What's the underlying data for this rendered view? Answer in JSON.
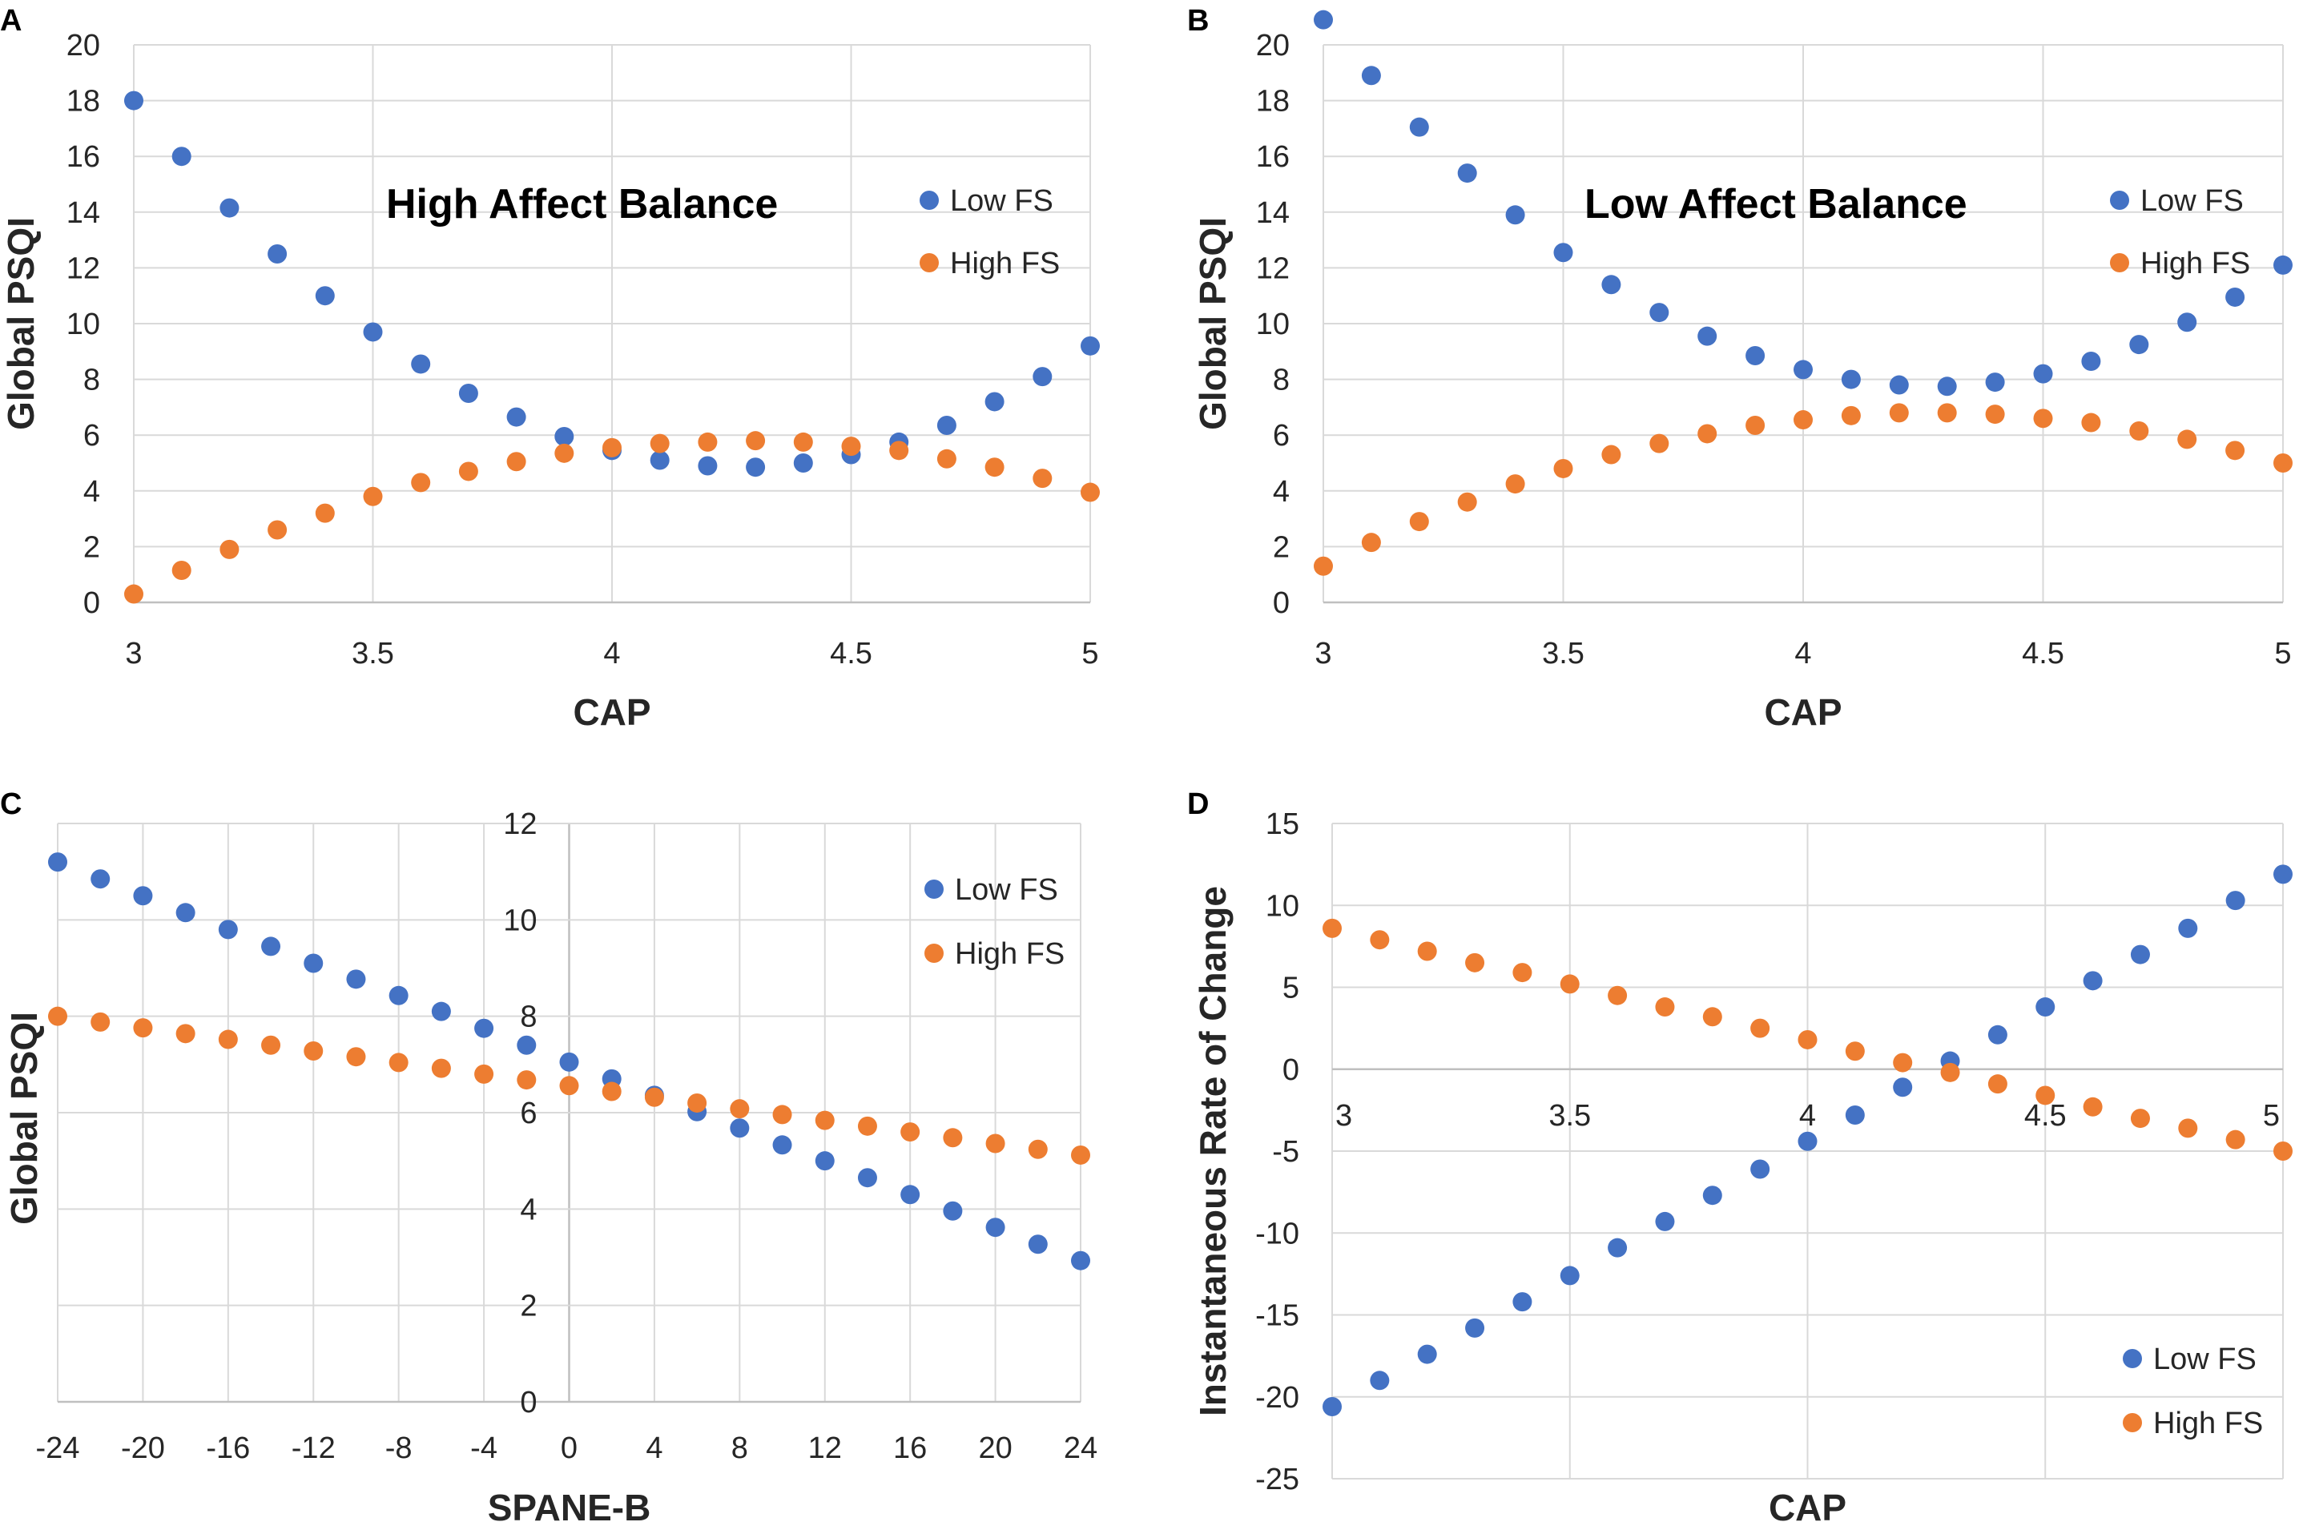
{
  "colors": {
    "low_fs": "#4472C4",
    "high_fs": "#ED7D31",
    "grid": "#d9d9d9",
    "text": "#262626"
  },
  "chart_data": [
    {
      "panel": "A",
      "type": "scatter",
      "title": "High Affect Balance",
      "xlabel": "CAP",
      "ylabel": "Global PSQI",
      "xlim": [
        3,
        5
      ],
      "ylim": [
        0,
        20
      ],
      "xticks": [
        3,
        3.5,
        4,
        4.5,
        5
      ],
      "xtick_labels": [
        "3",
        "3.5",
        "4",
        "4.5",
        "5"
      ],
      "yticks": [
        0,
        2,
        4,
        6,
        8,
        10,
        12,
        14,
        16,
        18,
        20
      ],
      "ytick_labels": [
        "0",
        "2",
        "4",
        "6",
        "8",
        "10",
        "12",
        "14",
        "16",
        "18",
        "20"
      ],
      "x_axis_at": 0,
      "legend_position": "top-right",
      "series": [
        {
          "name": "Low FS",
          "color": "#4472C4",
          "x": [
            3.0,
            3.1,
            3.2,
            3.3,
            3.4,
            3.5,
            3.6,
            3.7,
            3.8,
            3.9,
            4.0,
            4.1,
            4.2,
            4.3,
            4.4,
            4.5,
            4.6,
            4.7,
            4.8,
            4.9,
            5.0
          ],
          "y": [
            18.0,
            16.0,
            14.15,
            12.5,
            11.0,
            9.7,
            8.55,
            7.5,
            6.65,
            5.95,
            5.45,
            5.1,
            4.9,
            4.85,
            5.0,
            5.3,
            5.75,
            6.35,
            7.2,
            8.1,
            9.2
          ]
        },
        {
          "name": "High FS",
          "color": "#ED7D31",
          "x": [
            3.0,
            3.1,
            3.2,
            3.3,
            3.4,
            3.5,
            3.6,
            3.7,
            3.8,
            3.9,
            4.0,
            4.1,
            4.2,
            4.3,
            4.4,
            4.5,
            4.6,
            4.7,
            4.8,
            4.9,
            5.0
          ],
          "y": [
            0.3,
            1.15,
            1.9,
            2.6,
            3.2,
            3.8,
            4.3,
            4.7,
            5.05,
            5.35,
            5.55,
            5.7,
            5.75,
            5.8,
            5.75,
            5.6,
            5.45,
            5.15,
            4.85,
            4.45,
            3.95
          ]
        }
      ]
    },
    {
      "panel": "B",
      "type": "scatter",
      "title": "Low Affect Balance",
      "xlabel": "CAP",
      "ylabel": "Global PSQI",
      "xlim": [
        3,
        5
      ],
      "ylim": [
        0,
        20
      ],
      "xticks": [
        3,
        3.5,
        4,
        4.5,
        5
      ],
      "xtick_labels": [
        "3",
        "3.5",
        "4",
        "4.5",
        "5"
      ],
      "yticks": [
        0,
        2,
        4,
        6,
        8,
        10,
        12,
        14,
        16,
        18,
        20
      ],
      "ytick_labels": [
        "0",
        "2",
        "4",
        "6",
        "8",
        "10",
        "12",
        "14",
        "16",
        "18",
        "20"
      ],
      "x_axis_at": 0,
      "legend_position": "top-right",
      "series": [
        {
          "name": "Low FS",
          "color": "#4472C4",
          "x": [
            3.0,
            3.1,
            3.2,
            3.3,
            3.4,
            3.5,
            3.6,
            3.7,
            3.8,
            3.9,
            4.0,
            4.1,
            4.2,
            4.3,
            4.4,
            4.5,
            4.6,
            4.7,
            4.8,
            4.9,
            5.0
          ],
          "y": [
            20.9,
            18.9,
            17.05,
            15.4,
            13.9,
            12.55,
            11.4,
            10.4,
            9.55,
            8.85,
            8.35,
            8.0,
            7.8,
            7.75,
            7.9,
            8.2,
            8.65,
            9.25,
            10.05,
            10.95,
            12.1
          ]
        },
        {
          "name": "High FS",
          "color": "#ED7D31",
          "x": [
            3.0,
            3.1,
            3.2,
            3.3,
            3.4,
            3.5,
            3.6,
            3.7,
            3.8,
            3.9,
            4.0,
            4.1,
            4.2,
            4.3,
            4.4,
            4.5,
            4.6,
            4.7,
            4.8,
            4.9,
            5.0
          ],
          "y": [
            1.3,
            2.15,
            2.9,
            3.6,
            4.25,
            4.8,
            5.3,
            5.7,
            6.05,
            6.35,
            6.55,
            6.7,
            6.8,
            6.8,
            6.75,
            6.6,
            6.45,
            6.15,
            5.85,
            5.45,
            5.0
          ]
        }
      ]
    },
    {
      "panel": "C",
      "type": "scatter",
      "title": "",
      "xlabel": "SPANE-B",
      "ylabel": "Global PSQI",
      "xlim": [
        -24,
        24
      ],
      "ylim": [
        0,
        12
      ],
      "xticks": [
        -24,
        -20,
        -16,
        -12,
        -8,
        -4,
        0,
        4,
        8,
        12,
        16,
        20,
        24
      ],
      "xtick_labels": [
        "-24",
        "-20",
        "-16",
        "-12",
        "-8",
        "-4",
        "0",
        "4",
        "8",
        "12",
        "16",
        "20",
        "24"
      ],
      "yticks": [
        0,
        2,
        4,
        6,
        8,
        10,
        12
      ],
      "ytick_labels": [
        "0",
        "2",
        "4",
        "6",
        "8",
        "10",
        "12"
      ],
      "x_axis_at": 0,
      "y_axis_at": 0,
      "legend_position": "top-right",
      "series": [
        {
          "name": "Low FS",
          "color": "#4472C4",
          "x": [
            -24,
            -22,
            -20,
            -18,
            -16,
            -14,
            -12,
            -10,
            -8,
            -6,
            -4,
            -2,
            0,
            2,
            4,
            6,
            8,
            10,
            12,
            14,
            16,
            18,
            20,
            22,
            24
          ],
          "y": [
            11.2,
            10.85,
            10.5,
            10.15,
            9.8,
            9.45,
            9.1,
            8.77,
            8.43,
            8.1,
            7.75,
            7.4,
            7.05,
            6.7,
            6.36,
            6.02,
            5.68,
            5.33,
            5.0,
            4.65,
            4.3,
            3.96,
            3.62,
            3.27,
            2.93
          ]
        },
        {
          "name": "High FS",
          "color": "#ED7D31",
          "x": [
            -24,
            -22,
            -20,
            -18,
            -16,
            -14,
            -12,
            -10,
            -8,
            -6,
            -4,
            -2,
            0,
            2,
            4,
            6,
            8,
            10,
            12,
            14,
            16,
            18,
            20,
            22,
            24
          ],
          "y": [
            8.0,
            7.88,
            7.76,
            7.64,
            7.52,
            7.4,
            7.28,
            7.16,
            7.04,
            6.92,
            6.8,
            6.68,
            6.56,
            6.44,
            6.32,
            6.2,
            6.08,
            5.96,
            5.84,
            5.72,
            5.6,
            5.48,
            5.36,
            5.24,
            5.12
          ]
        }
      ]
    },
    {
      "panel": "D",
      "type": "scatter",
      "title": "",
      "xlabel": "CAP",
      "ylabel": "Instantaneous Rate of Change",
      "xlim": [
        3,
        5
      ],
      "ylim": [
        -25,
        15
      ],
      "xticks": [
        3,
        3.5,
        4,
        4.5,
        5
      ],
      "xtick_labels": [
        "3",
        "3.5",
        "4",
        "4.5",
        "5"
      ],
      "yticks": [
        -25,
        -20,
        -15,
        -10,
        -5,
        0,
        5,
        10,
        15
      ],
      "ytick_labels": [
        "-25",
        "-20",
        "-15",
        "-10",
        "-5",
        "0",
        "5",
        "10",
        "15"
      ],
      "x_axis_at": 0,
      "legend_position": "bottom-right",
      "series": [
        {
          "name": "Low FS",
          "color": "#4472C4",
          "x": [
            3.0,
            3.1,
            3.2,
            3.3,
            3.4,
            3.5,
            3.6,
            3.7,
            3.8,
            3.9,
            4.0,
            4.1,
            4.2,
            4.3,
            4.4,
            4.5,
            4.6,
            4.7,
            4.8,
            4.9,
            5.0
          ],
          "y": [
            -20.6,
            -19.0,
            -17.4,
            -15.8,
            -14.2,
            -12.6,
            -10.9,
            -9.3,
            -7.7,
            -6.1,
            -4.4,
            -2.8,
            -1.1,
            0.5,
            2.1,
            3.8,
            5.4,
            7.0,
            8.6,
            10.3,
            11.9
          ]
        },
        {
          "name": "High FS",
          "color": "#ED7D31",
          "x": [
            3.0,
            3.1,
            3.2,
            3.3,
            3.4,
            3.5,
            3.6,
            3.7,
            3.8,
            3.9,
            4.0,
            4.1,
            4.2,
            4.3,
            4.4,
            4.5,
            4.6,
            4.7,
            4.8,
            4.9,
            5.0
          ],
          "y": [
            8.6,
            7.9,
            7.2,
            6.5,
            5.9,
            5.2,
            4.5,
            3.8,
            3.2,
            2.5,
            1.8,
            1.1,
            0.4,
            -0.2,
            -0.9,
            -1.6,
            -2.3,
            -3.0,
            -3.6,
            -4.3,
            -5.0
          ]
        }
      ]
    }
  ]
}
